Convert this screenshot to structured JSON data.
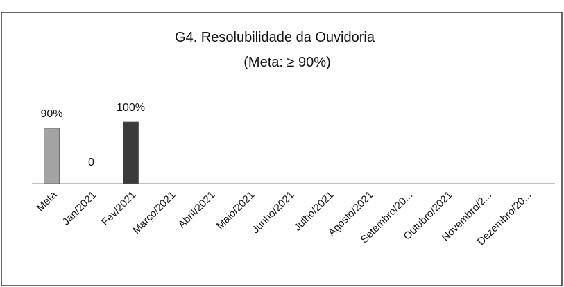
{
  "chart_data": {
    "type": "bar",
    "title": "G4. Resolubilidade da Ouvidoria",
    "subtitle": "(Meta: ≥ 90%)",
    "categories": [
      "Meta",
      "Jan/2021",
      "Fev/2021",
      "Março/2021",
      "Abril/2021",
      "Maio/2021",
      "Junho/2021",
      "Julho/2021",
      "Agosto/2021",
      "Setembro/20...",
      "Outubro/2021",
      "Novembro/2...",
      "Dezembro/20..."
    ],
    "values": [
      90,
      0,
      100,
      null,
      null,
      null,
      null,
      null,
      null,
      null,
      null,
      null,
      null
    ],
    "value_labels": [
      "90%",
      "0",
      "100%",
      null,
      null,
      null,
      null,
      null,
      null,
      null,
      null,
      null,
      null
    ],
    "colors": [
      "#a3a3a3",
      "#a3a3a3",
      "#3b3b3b",
      null,
      null,
      null,
      null,
      null,
      null,
      null,
      null,
      null,
      null
    ]
  }
}
